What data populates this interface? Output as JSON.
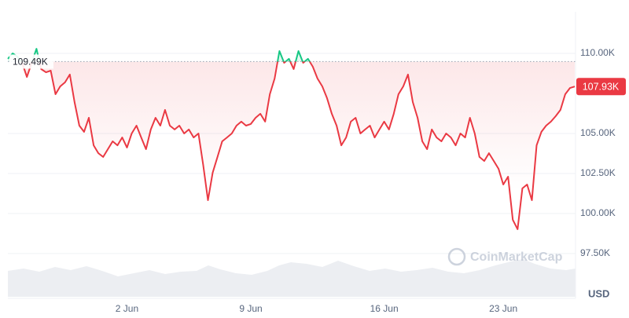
{
  "chart_data": {
    "type": "line",
    "categories": [
      null,
      null,
      null,
      null,
      null,
      null,
      null,
      null,
      null,
      null,
      null,
      null,
      null,
      null,
      null,
      null,
      null,
      null,
      null,
      null,
      null,
      null,
      null,
      null,
      null,
      "2 Jun",
      null,
      null,
      null,
      null,
      null,
      null,
      null,
      null,
      null,
      null,
      null,
      null,
      null,
      null,
      null,
      null,
      null,
      null,
      null,
      null,
      null,
      null,
      null,
      null,
      null,
      "9 Jun",
      null,
      null,
      null,
      null,
      null,
      null,
      null,
      null,
      null,
      null,
      null,
      null,
      null,
      null,
      null,
      null,
      null,
      null,
      null,
      null,
      null,
      null,
      null,
      null,
      null,
      null,
      null,
      "16 Jun",
      null,
      null,
      null,
      null,
      null,
      null,
      null,
      null,
      null,
      null,
      null,
      null,
      null,
      null,
      null,
      null,
      null,
      null,
      null,
      null,
      null,
      null,
      null,
      null,
      "23 Jun",
      null,
      null,
      null,
      null,
      null,
      null,
      null,
      null,
      null,
      null,
      null,
      null,
      null,
      null,
      null
    ],
    "series": [
      {
        "color_above": "#16c784",
        "color_below": "#ea3943",
        "values": [
          109.66,
          110.0,
          109.8,
          109.41,
          108.53,
          109.41,
          110.29,
          109.02,
          108.82,
          108.92,
          107.45,
          107.94,
          108.19,
          108.68,
          106.96,
          105.49,
          105.1,
          105.98,
          104.26,
          103.77,
          103.53,
          104.02,
          104.51,
          104.26,
          104.75,
          104.12,
          105.0,
          105.49,
          104.75,
          104.02,
          105.25,
          105.98,
          105.49,
          106.47,
          105.49,
          105.25,
          105.49,
          105.0,
          105.25,
          104.75,
          105.0,
          103.04,
          100.83,
          102.55,
          103.53,
          104.51,
          104.75,
          105.0,
          105.49,
          105.74,
          105.49,
          105.59,
          105.98,
          106.23,
          105.74,
          107.45,
          108.43,
          110.15,
          109.41,
          109.66,
          109.02,
          110.15,
          109.41,
          109.66,
          109.17,
          108.43,
          107.94,
          107.21,
          106.23,
          105.49,
          104.26,
          104.75,
          105.74,
          105.98,
          105.0,
          105.25,
          105.49,
          104.75,
          105.25,
          105.74,
          105.25,
          106.23,
          107.45,
          107.94,
          108.68,
          106.96,
          105.98,
          104.51,
          104.02,
          105.25,
          104.75,
          104.51,
          105.0,
          104.75,
          104.26,
          105.0,
          104.75,
          105.98,
          105.0,
          103.53,
          103.28,
          103.77,
          103.28,
          102.79,
          101.81,
          102.3,
          99.61,
          99.02,
          101.57,
          101.81,
          100.83,
          104.26,
          105.1,
          105.49,
          105.74,
          106.08,
          106.47,
          107.45,
          107.84,
          107.93
        ]
      }
    ],
    "ylim": [
      94.7,
      112.6
    ],
    "yticks": [
      {
        "value": 97.5,
        "label": "97.50K"
      },
      {
        "value": 100,
        "label": "100.00K"
      },
      {
        "value": 102.5,
        "label": "102.50K"
      },
      {
        "value": 105,
        "label": "105.00K"
      },
      {
        "value": 110,
        "label": "110.00K"
      }
    ],
    "grid": true,
    "baseline": {
      "value": 109.49,
      "label": "109.49K"
    },
    "last_price": {
      "value": 107.93,
      "label": "107.93K"
    },
    "currency": "USD",
    "watermark": "CoinMarketCap"
  }
}
